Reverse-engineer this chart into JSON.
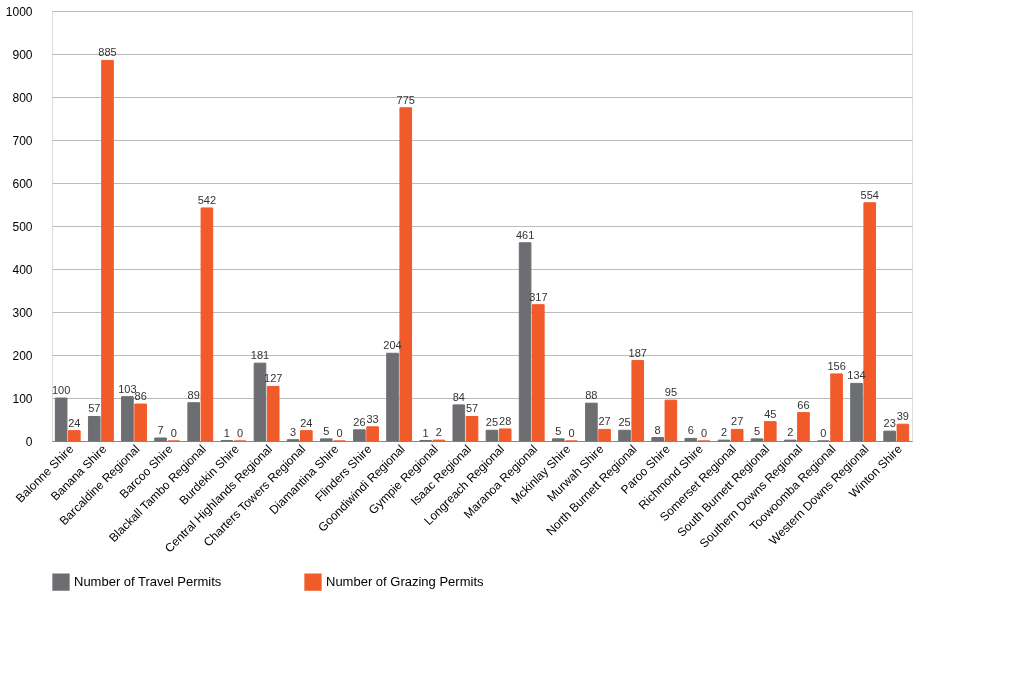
{
  "chart_data": {
    "type": "bar",
    "categories": [
      "Balonne Shire",
      "Banana Shire",
      "Barcaldine Regional",
      "Barcoo Shire",
      "Blackall Tambo Regional",
      "Burdekin Shire",
      "Central Highlands Regional",
      "Charters Towers Regional",
      "Diamantina Shire",
      "Flinders Shire",
      "Goondiwindi Regional",
      "Gympie Regional",
      "Isaac Regional",
      "Longreach Regional",
      "Maranoa Regional",
      "Mckinlay Shire",
      "Murwah Shire",
      "North Burnett Regional",
      "Paroo Shire",
      "Richmond Shire",
      "Somerset Regional",
      "South Burnett Regional",
      "Southern Downs Regional",
      "Toowoomba Regional",
      "Western Downs Regional",
      "Winton Shire"
    ],
    "series": [
      {
        "name": "Number of Travel Permits",
        "color": "#6d6e71",
        "values": [
          100,
          57,
          103,
          7,
          89,
          1,
          181,
          3,
          5,
          26,
          204,
          1,
          84,
          25,
          461,
          5,
          88,
          25,
          8,
          6,
          2,
          5,
          2,
          0,
          134,
          23
        ]
      },
      {
        "name": "Number of Grazing Permits",
        "color": "#f15a29",
        "values": [
          24,
          885,
          86,
          0,
          542,
          0,
          127,
          24,
          0,
          33,
          775,
          2,
          57,
          28,
          317,
          0,
          27,
          187,
          95,
          0,
          27,
          45,
          66,
          156,
          554,
          39
        ]
      }
    ],
    "ylim": [
      0,
      1000
    ],
    "yticks": [
      0,
      100,
      200,
      300,
      400,
      500,
      600,
      700,
      800,
      900,
      1000
    ],
    "grid": "y",
    "legend": "bottom",
    "data_labels": true
  }
}
